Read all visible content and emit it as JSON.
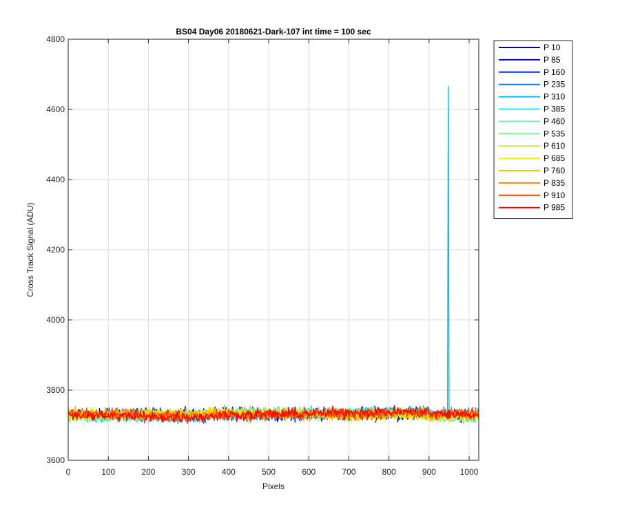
{
  "chart_data": {
    "type": "line",
    "title": "BS04 Day06 20180621-Dark-107 int time = 100 sec",
    "xlabel": "Pixels",
    "ylabel": "Cross Track Signal (ADU)",
    "xlim": [
      0,
      1024
    ],
    "ylim": [
      3600,
      4800
    ],
    "xticks": [
      0,
      100,
      200,
      300,
      400,
      500,
      600,
      700,
      800,
      900,
      1000
    ],
    "yticks": [
      3600,
      3800,
      4000,
      4200,
      4400,
      4600,
      4800
    ],
    "grid": true,
    "legend_position": "outside-top-right",
    "noise_band": {
      "baseline": 3728,
      "spread": 12,
      "drift_amplitude": 8
    },
    "series": [
      {
        "name": "P 10",
        "color": "#00008F"
      },
      {
        "name": "P 85",
        "color": "#0000DF"
      },
      {
        "name": "P 160",
        "color": "#0030FF"
      },
      {
        "name": "P 235",
        "color": "#0080FF"
      },
      {
        "name": "P 310",
        "color": "#00C0F0",
        "spike": {
          "x": 948,
          "y": 4665
        }
      },
      {
        "name": "P 385",
        "color": "#20F0E8"
      },
      {
        "name": "P 460",
        "color": "#70F0C0"
      },
      {
        "name": "P 535",
        "color": "#80F080"
      },
      {
        "name": "P 610",
        "color": "#C0F040"
      },
      {
        "name": "P 685",
        "color": "#FFF000"
      },
      {
        "name": "P 760",
        "color": "#FFC000"
      },
      {
        "name": "P 835",
        "color": "#FF8000"
      },
      {
        "name": "P 910",
        "color": "#FF4000"
      },
      {
        "name": "P 985",
        "color": "#FF0000"
      }
    ]
  }
}
